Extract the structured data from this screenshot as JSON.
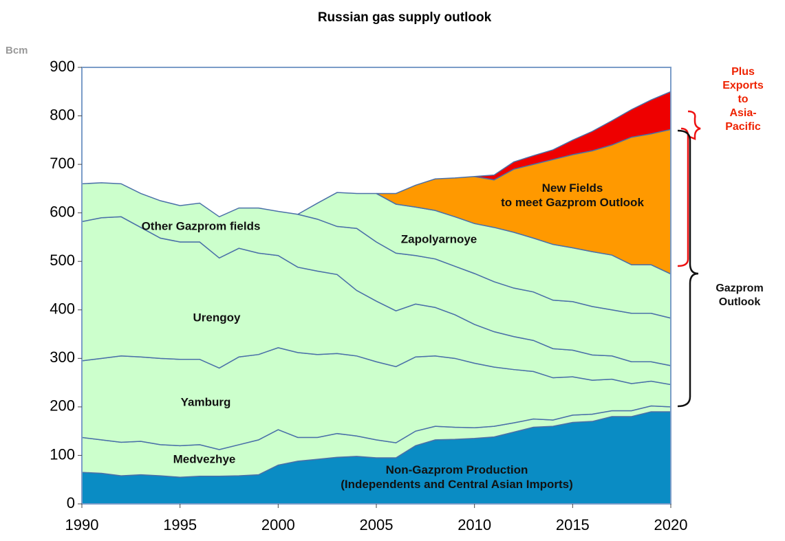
{
  "chart_data": {
    "type": "stacked_area",
    "title": "Russian gas supply outlook",
    "y_label": "Bcm",
    "x": [
      1990,
      1991,
      1992,
      1993,
      1994,
      1995,
      1996,
      1997,
      1998,
      1999,
      2000,
      2001,
      2002,
      2003,
      2004,
      2005,
      2006,
      2007,
      2008,
      2009,
      2010,
      2011,
      2012,
      2013,
      2014,
      2015,
      2016,
      2017,
      2018,
      2019,
      2020
    ],
    "xlim": [
      1990,
      2020
    ],
    "xticks": [
      1990,
      1995,
      2000,
      2005,
      2010,
      2015,
      2020
    ],
    "ylim": [
      0,
      900
    ],
    "yticks": [
      0,
      100,
      200,
      300,
      400,
      500,
      600,
      700,
      800,
      900
    ],
    "series": [
      {
        "name": "Non-Gazprom Production\n(Independents and Central Asian Imports)",
        "color": "#0a8cc4",
        "values": [
          65,
          63,
          58,
          60,
          58,
          55,
          57,
          57,
          58,
          60,
          80,
          88,
          92,
          96,
          98,
          95,
          95,
          120,
          132,
          133,
          135,
          138,
          148,
          158,
          160,
          168,
          170,
          180,
          180,
          190,
          190
        ]
      },
      {
        "name": "Medvezhye",
        "color": "#ccffcc",
        "values": [
          72,
          69,
          69,
          69,
          64,
          65,
          65,
          55,
          64,
          72,
          73,
          49,
          45,
          49,
          42,
          37,
          31,
          30,
          28,
          25,
          22,
          22,
          19,
          17,
          13,
          15,
          15,
          12,
          12,
          12,
          10
        ]
      },
      {
        "name": "Yamburg",
        "color": "#ccffcc",
        "values": [
          158,
          168,
          178,
          174,
          178,
          178,
          176,
          168,
          181,
          176,
          169,
          175,
          171,
          165,
          165,
          161,
          157,
          153,
          145,
          142,
          133,
          122,
          110,
          98,
          87,
          79,
          70,
          65,
          56,
          51,
          46
        ]
      },
      {
        "name": "Urengoy",
        "color": "#ccffcc",
        "values": [
          287,
          290,
          287,
          267,
          248,
          242,
          242,
          227,
          224,
          209,
          190,
          176,
          172,
          163,
          135,
          125,
          115,
          109,
          100,
          90,
          80,
          73,
          68,
          64,
          60,
          55,
          52,
          48,
          45,
          40,
          39
        ]
      },
      {
        "name": "Other Gazprom fields",
        "color": "#ccffcc",
        "values": [
          78,
          72,
          68,
          70,
          77,
          75,
          80,
          85,
          83,
          93,
          91,
          109,
          107,
          99,
          128,
          122,
          119,
          100,
          100,
          100,
          105,
          103,
          100,
          100,
          100,
          100,
          100,
          95,
          100,
          100,
          98
        ]
      },
      {
        "name": "Zapolyarnoye",
        "color": "#ccffcc",
        "values": [
          null,
          null,
          null,
          null,
          null,
          null,
          null,
          null,
          null,
          null,
          null,
          0,
          33,
          70,
          72,
          100,
          101,
          100,
          100,
          102,
          103,
          112,
          115,
          111,
          115,
          111,
          113,
          113,
          100,
          100,
          91
        ]
      },
      {
        "name": "New Fields\nto meet Gazprom Outlook",
        "color": "#ff9900",
        "values": [
          null,
          null,
          null,
          null,
          null,
          null,
          null,
          null,
          null,
          null,
          null,
          null,
          null,
          null,
          null,
          0,
          22,
          45,
          65,
          80,
          97,
          98,
          130,
          152,
          175,
          192,
          208,
          227,
          263,
          270,
          298
        ]
      },
      {
        "name": "Plus\nExports to\nAsia-Pacific",
        "color": "#ee0000",
        "values": [
          null,
          null,
          null,
          null,
          null,
          null,
          null,
          null,
          null,
          null,
          null,
          null,
          null,
          null,
          null,
          null,
          null,
          null,
          null,
          null,
          0,
          10,
          15,
          18,
          20,
          30,
          40,
          50,
          57,
          70,
          78
        ]
      }
    ],
    "annotations": [
      "Gazprom\nOutlook"
    ]
  }
}
